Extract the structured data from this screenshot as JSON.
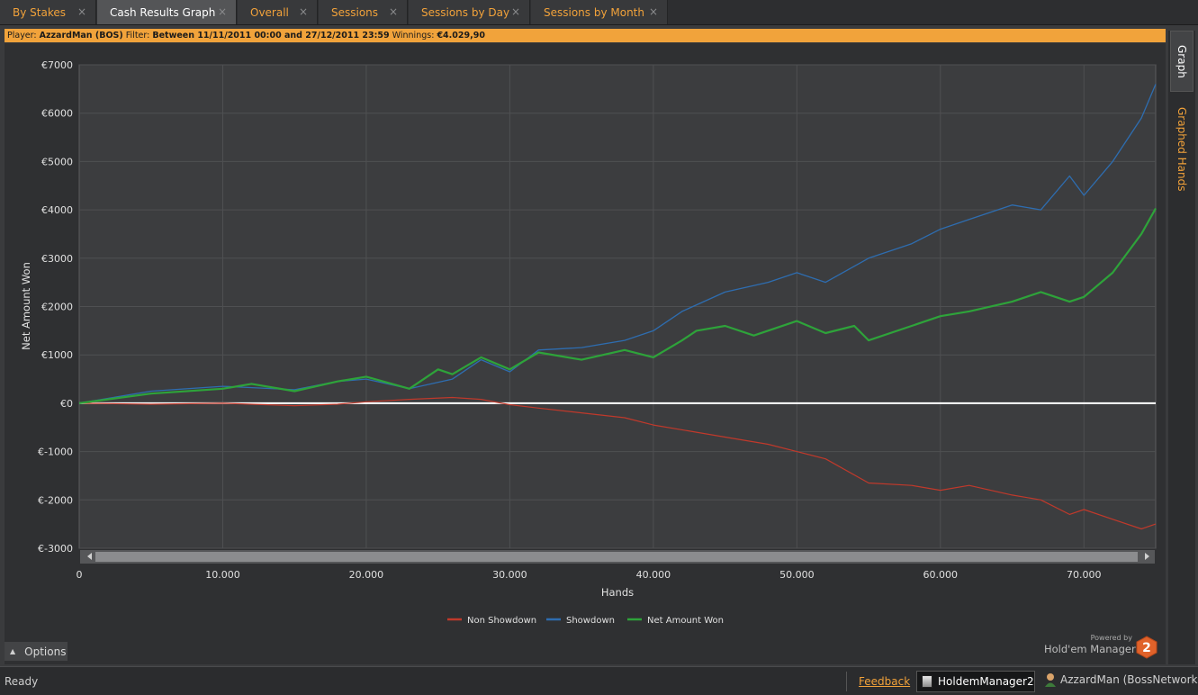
{
  "tabs": [
    {
      "label": "By Stakes",
      "active": false
    },
    {
      "label": "Cash Results Graph",
      "active": true
    },
    {
      "label": "Overall",
      "active": false
    },
    {
      "label": "Sessions",
      "active": false
    },
    {
      "label": "Sessions by Day",
      "active": false
    },
    {
      "label": "Sessions by Month",
      "active": false
    }
  ],
  "tab_close_glyph": "×",
  "infobar": {
    "player_label": "Player:",
    "player_value": "AzzardMan (BOS)",
    "filter_label": "Filter:",
    "filter_value": "Between 11/11/2011 00:00 and 27/12/2011 23:59",
    "winnings_label": "Winnings:",
    "winnings_value": "€4.029,90",
    "background": "#f1a33b"
  },
  "side_tabs": {
    "graph": "Graph",
    "graphed_hands": "Graphed Hands"
  },
  "options_label": "Options",
  "powered": {
    "by": "Powered by",
    "product": "Hold'em Manager",
    "badge": "2"
  },
  "status": {
    "ready": "Ready",
    "feedback": "Feedback",
    "app": "HoldemManager2",
    "user": "AzzardMan (BossNetwork)"
  },
  "icons": {
    "tab_close": "close-icon",
    "options": "caret-up-icon",
    "app": "app-icon",
    "user": "user-avatar-icon",
    "scroll_left": "arrow-left-icon",
    "scroll_right": "arrow-right-icon"
  },
  "chart_data": {
    "type": "line",
    "xlabel": "Hands",
    "ylabel": "Net Amount Won",
    "xlim": [
      0,
      75000
    ],
    "ylim": [
      -3000,
      7000
    ],
    "x_ticks": [
      0,
      10000,
      20000,
      30000,
      40000,
      50000,
      60000,
      70000
    ],
    "x_tick_labels": [
      "0",
      "10.000",
      "20.000",
      "30.000",
      "40.000",
      "50.000",
      "60.000",
      "70.000"
    ],
    "y_ticks": [
      7000,
      6000,
      5000,
      4000,
      3000,
      2000,
      1000,
      0,
      -1000,
      -2000,
      -3000
    ],
    "y_tick_labels": [
      "€7000",
      "€6000",
      "€5000",
      "€4000",
      "€3000",
      "€2000",
      "€1000",
      "€0",
      "€-1000",
      "€-2000",
      "€-3000"
    ],
    "grid": true,
    "legend_position": "bottom-center",
    "series": [
      {
        "name": "Non Showdown",
        "color": "#c0392b",
        "x": [
          0,
          5000,
          10000,
          15000,
          18000,
          20000,
          23000,
          26000,
          28000,
          30000,
          32000,
          35000,
          38000,
          40000,
          43000,
          45000,
          48000,
          50000,
          52000,
          55000,
          58000,
          60000,
          62000,
          65000,
          67000,
          69000,
          70000,
          72000,
          74000,
          75000
        ],
        "y": [
          0,
          -20,
          0,
          -50,
          -20,
          30,
          80,
          120,
          80,
          -30,
          -100,
          -200,
          -300,
          -450,
          -600,
          -700,
          -850,
          -1000,
          -1150,
          -1650,
          -1700,
          -1800,
          -1700,
          -1900,
          -2000,
          -2300,
          -2200,
          -2400,
          -2600,
          -2500
        ]
      },
      {
        "name": "Showdown",
        "color": "#2e6db0",
        "x": [
          0,
          5000,
          10000,
          15000,
          18000,
          20000,
          23000,
          26000,
          28000,
          30000,
          32000,
          35000,
          38000,
          40000,
          42000,
          45000,
          48000,
          50000,
          52000,
          55000,
          58000,
          60000,
          62000,
          65000,
          67000,
          69000,
          70000,
          72000,
          74000,
          75000
        ],
        "y": [
          0,
          250,
          350,
          280,
          450,
          500,
          300,
          500,
          900,
          650,
          1100,
          1150,
          1300,
          1500,
          1900,
          2300,
          2500,
          2700,
          2500,
          3000,
          3300,
          3600,
          3800,
          4100,
          4000,
          4700,
          4300,
          5000,
          5900,
          6600
        ]
      },
      {
        "name": "Net Amount Won",
        "color": "#2ea33a",
        "x": [
          0,
          5000,
          10000,
          12000,
          15000,
          18000,
          20000,
          23000,
          25000,
          26000,
          28000,
          30000,
          32000,
          35000,
          38000,
          40000,
          42000,
          43000,
          45000,
          47000,
          50000,
          52000,
          54000,
          55000,
          58000,
          60000,
          62000,
          65000,
          67000,
          69000,
          70000,
          72000,
          74000,
          75000
        ],
        "y": [
          0,
          200,
          300,
          400,
          250,
          450,
          550,
          300,
          700,
          600,
          950,
          700,
          1050,
          900,
          1100,
          950,
          1300,
          1500,
          1600,
          1400,
          1700,
          1450,
          1600,
          1300,
          1600,
          1800,
          1900,
          2100,
          2300,
          2100,
          2200,
          2700,
          3500,
          4030
        ]
      }
    ]
  }
}
